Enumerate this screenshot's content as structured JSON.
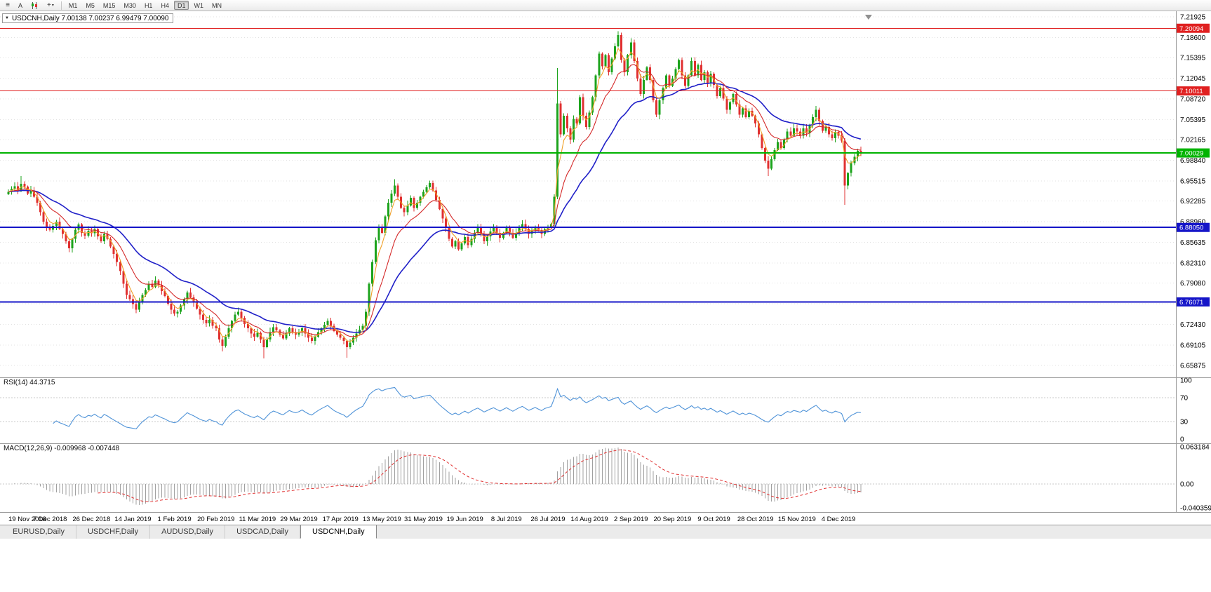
{
  "toolbar": {
    "a_label": "A",
    "icons": [
      "menu-icon",
      "auto-arrange-button",
      "chart-type-icon",
      "crosshair-icon"
    ],
    "timeframes": [
      {
        "label": "M1",
        "active": false
      },
      {
        "label": "M5",
        "active": false
      },
      {
        "label": "M15",
        "active": false
      },
      {
        "label": "M30",
        "active": false
      },
      {
        "label": "H1",
        "active": false
      },
      {
        "label": "H4",
        "active": false
      },
      {
        "label": "D1",
        "active": true
      },
      {
        "label": "W1",
        "active": false
      },
      {
        "label": "MN",
        "active": false
      }
    ]
  },
  "chart": {
    "symbol_line": "USDCNH,Daily 7.00138 7.00237 6.99479 7.00090"
  },
  "rsi": {
    "label": "RSI(14) 44.3715"
  },
  "macd": {
    "label": "MACD(12,26,9) -0.009968 -0.007448"
  },
  "tabs": [
    {
      "label": "EURUSD,Daily",
      "active": false
    },
    {
      "label": "USDCHF,Daily",
      "active": false
    },
    {
      "label": "AUDUSD,Daily",
      "active": false
    },
    {
      "label": "USDCAD,Daily",
      "active": false
    },
    {
      "label": "USDCNH,Daily",
      "active": true
    }
  ],
  "chart_data": {
    "type": "candlestick",
    "symbol": "USDCNH",
    "timeframe": "Daily",
    "current_ohlc": {
      "open": 7.00138,
      "high": 7.00237,
      "low": 6.99479,
      "close": 7.0009
    },
    "price_ticks": [
      "7.21925",
      "7.18600",
      "7.15395",
      "7.12045",
      "7.08720",
      "7.05395",
      "7.02165",
      "6.98840",
      "6.95515",
      "6.92285",
      "6.88960",
      "6.85635",
      "6.82310",
      "6.79080",
      "6.75755",
      "6.72430",
      "6.69105",
      "6.65875"
    ],
    "date_labels": [
      "19 Nov 2018",
      "7 Dec 2018",
      "26 Dec 2018",
      "14 Jan 2019",
      "1 Feb 2019",
      "20 Feb 2019",
      "11 Mar 2019",
      "29 Mar 2019",
      "17 Apr 2019",
      "13 May 2019",
      "31 May 2019",
      "19 Jun 2019",
      "8 Jul 2019",
      "26 Jul 2019",
      "14 Aug 2019",
      "2 Sep 2019",
      "20 Sep 2019",
      "9 Oct 2019",
      "28 Oct 2019",
      "15 Nov 2019",
      "4 Dec 2019"
    ],
    "closes": [
      6.938,
      6.943,
      6.947,
      6.94,
      6.951,
      6.946,
      6.935,
      6.94,
      6.93,
      6.92,
      6.905,
      6.89,
      6.882,
      6.877,
      6.883,
      6.89,
      6.878,
      6.87,
      6.858,
      6.847,
      6.862,
      6.877,
      6.885,
      6.872,
      6.867,
      6.875,
      6.871,
      6.878,
      6.866,
      6.858,
      6.87,
      6.862,
      6.85,
      6.838,
      6.825,
      6.81,
      6.79,
      6.772,
      6.765,
      6.757,
      6.748,
      6.76,
      6.772,
      6.78,
      6.79,
      6.785,
      6.795,
      6.788,
      6.778,
      6.77,
      6.758,
      6.748,
      6.742,
      6.745,
      6.755,
      6.765,
      6.776,
      6.768,
      6.76,
      6.75,
      6.74,
      6.732,
      6.726,
      6.732,
      6.722,
      6.718,
      6.7,
      6.69,
      6.705,
      6.718,
      6.73,
      6.74,
      6.745,
      6.735,
      6.725,
      6.718,
      6.71,
      6.705,
      6.711,
      6.7,
      6.688,
      6.7,
      6.712,
      6.72,
      6.715,
      6.708,
      6.702,
      6.71,
      6.718,
      6.712,
      6.708,
      6.712,
      6.718,
      6.71,
      6.703,
      6.698,
      6.705,
      6.712,
      6.718,
      6.724,
      6.73,
      6.722,
      6.714,
      6.708,
      6.703,
      6.698,
      6.688,
      6.695,
      6.703,
      6.71,
      6.716,
      6.722,
      6.745,
      6.79,
      6.825,
      6.86,
      6.88,
      6.872,
      6.898,
      6.92,
      6.935,
      6.948,
      6.93,
      6.912,
      6.905,
      6.916,
      6.928,
      6.912,
      6.92,
      6.93,
      6.938,
      6.945,
      6.952,
      6.94,
      6.925,
      6.91,
      6.895,
      6.88,
      6.862,
      6.85,
      6.858,
      6.845,
      6.855,
      6.865,
      6.852,
      6.862,
      6.872,
      6.88,
      6.87,
      6.858,
      6.866,
      6.874,
      6.88,
      6.872,
      6.864,
      6.872,
      6.88,
      6.872,
      6.864,
      6.872,
      6.88,
      6.886,
      6.878,
      6.87,
      6.876,
      6.882,
      6.876,
      6.87,
      6.878,
      6.882,
      6.886,
      6.93,
      7.08,
      7.03,
      7.06,
      7.04,
      7.022,
      7.055,
      7.048,
      7.09,
      7.06,
      7.042,
      7.065,
      7.09,
      7.125,
      7.16,
      7.14,
      7.158,
      7.13,
      7.152,
      7.172,
      7.19,
      7.15,
      7.13,
      7.158,
      7.178,
      7.148,
      7.12,
      7.095,
      7.118,
      7.138,
      7.118,
      7.085,
      7.062,
      7.085,
      7.105,
      7.125,
      7.108,
      7.12,
      7.135,
      7.15,
      7.125,
      7.108,
      7.125,
      7.148,
      7.125,
      7.142,
      7.118,
      7.13,
      7.112,
      7.128,
      7.11,
      7.092,
      7.105,
      7.088,
      7.07,
      7.082,
      7.095,
      7.078,
      7.062,
      7.072,
      7.058,
      7.068,
      7.06,
      7.048,
      7.03,
      7.008,
      6.988,
      6.975,
      6.99,
      7.005,
      7.018,
      7.008,
      7.022,
      7.035,
      7.028,
      7.04,
      7.035,
      7.028,
      7.04,
      7.032,
      7.045,
      7.058,
      7.07,
      7.052,
      7.036,
      7.042,
      7.03,
      7.024,
      7.034,
      7.028,
      7.02,
      6.948,
      6.968,
      6.984,
      6.994,
      7.004,
      7.001
    ],
    "wick_overrides": {
      "4": {
        "high": 6.963
      },
      "67": {
        "low": 6.681
      },
      "80": {
        "low": 6.67
      },
      "106": {
        "low": 6.671
      },
      "121": {
        "high": 6.958
      },
      "172": {
        "high": 7.137
      },
      "191": {
        "high": 7.196
      },
      "238": {
        "low": 6.963
      },
      "262": {
        "low": 6.917
      }
    },
    "hlines": [
      {
        "value": 7.20094,
        "label": "7.20094",
        "color": "#e02020",
        "width": 1
      },
      {
        "value": 7.10011,
        "label": "7.10011",
        "color": "#e02020",
        "width": 1
      },
      {
        "value": 7.00029,
        "label": "7.00029",
        "color": "#00b300",
        "width": 2
      },
      {
        "value": 6.8805,
        "label": "6.88050",
        "color": "#1515c8",
        "width": 2
      },
      {
        "value": 6.76071,
        "label": "6.76071",
        "color": "#1515c8",
        "width": 2
      }
    ],
    "moving_averages": [
      {
        "name": "ema-slow",
        "period": 30,
        "color": "#2020c8"
      },
      {
        "name": "ema-mid",
        "period": 12,
        "color": "#d42a2a"
      },
      {
        "name": "ema-fast",
        "period": 4,
        "color": "#f0a028"
      }
    ],
    "candle_colors": {
      "up": "#1ca31c",
      "down": "#e03030"
    },
    "rsi": {
      "period": 14,
      "current": 44.3715,
      "color": "#4f93d8",
      "ticks": [
        100,
        70,
        30,
        0
      ],
      "levels": [
        70,
        30
      ]
    },
    "macd": {
      "fast": 12,
      "slow": 26,
      "signal": 9,
      "current_macd": -0.009968,
      "current_signal": -0.007448,
      "vmax": 0.063184,
      "vmin": -0.040359,
      "ticks": [
        "0.063184",
        "0.00",
        "-0.040359"
      ],
      "hist_color": "#a0a0a0",
      "signal_color": "#e03030"
    }
  }
}
